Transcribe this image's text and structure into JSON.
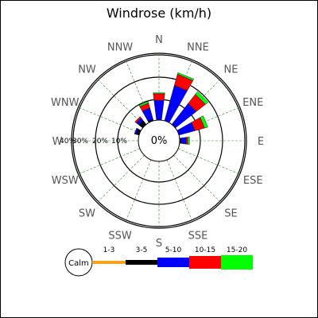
{
  "chart_data": {
    "type": "windrose",
    "title": "Windrose (km/h)",
    "center_label": "0%",
    "directions": [
      "N",
      "NNE",
      "NE",
      "ENE",
      "E",
      "ESE",
      "SE",
      "SSE",
      "S",
      "SSW",
      "SW",
      "WSW",
      "W",
      "WNW",
      "NW",
      "NNW"
    ],
    "ring_labels": [
      "10%",
      "20%",
      "30%",
      "40%"
    ],
    "radial_max_percent": 40,
    "speed_bins": [
      {
        "name": "1-3",
        "color": "#f5a31a"
      },
      {
        "name": "3-5",
        "color": "#000000"
      },
      {
        "name": "5-10",
        "color": "#0000ff"
      },
      {
        "name": "10-15",
        "color": "#ff0000"
      },
      {
        "name": "15-20",
        "color": "#00ff00"
      }
    ],
    "legend_calm_label": "Calm",
    "series": [
      {
        "direction": "N",
        "values": [
          0,
          0,
          12,
          4,
          0.5
        ]
      },
      {
        "direction": "NNE",
        "values": [
          0,
          0,
          22,
          7,
          1
        ]
      },
      {
        "direction": "NE",
        "values": [
          0,
          0,
          16,
          7,
          2
        ]
      },
      {
        "direction": "ENE",
        "values": [
          0,
          0,
          10,
          6,
          2
        ]
      },
      {
        "direction": "E",
        "values": [
          0,
          1,
          3,
          1,
          1
        ]
      },
      {
        "direction": "ESE",
        "values": [
          0,
          0,
          0,
          0,
          0
        ]
      },
      {
        "direction": "SE",
        "values": [
          0,
          0,
          0,
          0,
          0
        ]
      },
      {
        "direction": "SSE",
        "values": [
          0,
          0,
          0,
          0,
          0
        ]
      },
      {
        "direction": "S",
        "values": [
          0,
          0,
          0,
          0,
          0
        ]
      },
      {
        "direction": "SSW",
        "values": [
          0,
          0,
          0,
          0,
          0
        ]
      },
      {
        "direction": "SW",
        "values": [
          0,
          0,
          0,
          0,
          0
        ]
      },
      {
        "direction": "WSW",
        "values": [
          0,
          0,
          0,
          0,
          0
        ]
      },
      {
        "direction": "W",
        "values": [
          0,
          0,
          0,
          0,
          0
        ]
      },
      {
        "direction": "WNW",
        "values": [
          0,
          2,
          1,
          0,
          0
        ]
      },
      {
        "direction": "NW",
        "values": [
          0,
          3,
          2,
          1,
          0
        ]
      },
      {
        "direction": "NNW",
        "values": [
          0,
          1,
          7,
          3,
          1
        ]
      }
    ]
  }
}
